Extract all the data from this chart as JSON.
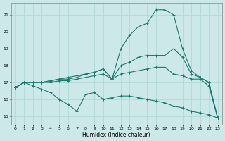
{
  "bg_color": "#cce8e8",
  "grid_color": "#b0d8d8",
  "line_color": "#1a7a6e",
  "xlabel": "Humidex (Indice chaleur)",
  "xlim": [
    -0.5,
    23.5
  ],
  "ylim": [
    14.5,
    21.7
  ],
  "yticks": [
    15,
    16,
    17,
    18,
    19,
    20,
    21
  ],
  "xticks": [
    0,
    1,
    2,
    3,
    4,
    5,
    6,
    7,
    8,
    9,
    10,
    11,
    12,
    13,
    14,
    15,
    16,
    17,
    18,
    19,
    20,
    21,
    22,
    23
  ],
  "series": [
    {
      "x": [
        0,
        1,
        2,
        3,
        4,
        5,
        6,
        7,
        8,
        9,
        10,
        11,
        12,
        13,
        14,
        15,
        16,
        17,
        18,
        19,
        20,
        21,
        22,
        23
      ],
      "y": [
        16.7,
        17.0,
        16.8,
        16.6,
        16.4,
        16.0,
        15.7,
        15.3,
        16.3,
        16.4,
        16.0,
        16.1,
        16.2,
        16.2,
        16.1,
        16.0,
        15.9,
        15.8,
        15.6,
        15.5,
        15.3,
        15.2,
        15.1,
        14.9
      ]
    },
    {
      "x": [
        0,
        1,
        2,
        3,
        4,
        5,
        6,
        7,
        8,
        9,
        10,
        11,
        12,
        13,
        14,
        15,
        16,
        17,
        18,
        19,
        20,
        21,
        22,
        23
      ],
      "y": [
        16.7,
        17.0,
        17.0,
        17.0,
        17.0,
        17.1,
        17.1,
        17.2,
        17.3,
        17.4,
        17.5,
        17.2,
        17.5,
        17.6,
        17.7,
        17.8,
        17.9,
        17.9,
        17.5,
        17.4,
        17.2,
        17.2,
        16.8,
        14.9
      ]
    },
    {
      "x": [
        0,
        1,
        2,
        3,
        4,
        5,
        6,
        7,
        8,
        9,
        10,
        11,
        12,
        13,
        14,
        15,
        16,
        17,
        18,
        19,
        20,
        21,
        22,
        23
      ],
      "y": [
        16.7,
        17.0,
        17.0,
        17.0,
        17.1,
        17.2,
        17.2,
        17.3,
        17.5,
        17.6,
        17.8,
        17.2,
        18.0,
        18.2,
        18.5,
        18.6,
        18.6,
        18.6,
        19.0,
        18.5,
        17.5,
        17.3,
        17.0,
        14.9
      ]
    },
    {
      "x": [
        0,
        1,
        2,
        3,
        4,
        5,
        6,
        7,
        8,
        9,
        10,
        11,
        12,
        13,
        14,
        15,
        16,
        17,
        18,
        19,
        20,
        21,
        22,
        23
      ],
      "y": [
        16.7,
        17.0,
        17.0,
        17.0,
        17.1,
        17.2,
        17.3,
        17.4,
        17.5,
        17.6,
        17.8,
        17.2,
        19.0,
        19.8,
        20.3,
        20.5,
        21.3,
        21.3,
        21.0,
        19.0,
        17.7,
        17.3,
        17.0,
        14.9
      ]
    }
  ]
}
